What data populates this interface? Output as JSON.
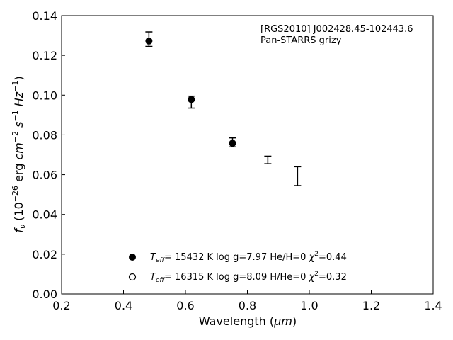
{
  "chart_data": {
    "type": "scatter",
    "annotation": [
      "[RGS2010] J002428.45-102443.6",
      "Pan-STARRS grizy"
    ],
    "xlabel": {
      "prefix": "Wavelength (",
      "unit": "μm",
      "suffix": ")"
    },
    "ylabel": {
      "f": "f",
      "nu": "ν",
      "open": " (10",
      "exp1": "−26",
      "mid": " erg ",
      "cm": "cm",
      "exp2": "−2",
      "s": " s",
      "exp3": "−1",
      "hz": " Hz",
      "exp4": "−1",
      "close": ")"
    },
    "xlim": [
      0.2,
      1.4
    ],
    "ylim": [
      0.0,
      0.14
    ],
    "xticks": [
      "0.2",
      "0.4",
      "0.6",
      "0.8",
      "1.0",
      "1.2",
      "1.4"
    ],
    "yticks": [
      "0.00",
      "0.02",
      "0.04",
      "0.06",
      "0.08",
      "0.10",
      "0.12",
      "0.14"
    ],
    "observed": {
      "x": [
        0.482,
        0.619,
        0.752,
        0.866,
        0.962
      ],
      "y": [
        0.1278,
        0.0966,
        0.0762,
        0.0674,
        0.0592
      ],
      "yerr_low": [
        0.1245,
        0.0935,
        0.074,
        0.0655,
        0.0545
      ],
      "yerr_high": [
        0.1318,
        0.0995,
        0.0785,
        0.0693,
        0.064
      ]
    },
    "model_he": {
      "marker": "filled-circle",
      "x": [
        0.482,
        0.619,
        0.752
      ],
      "y": [
        0.1272,
        0.0978,
        0.0758
      ]
    },
    "legend": [
      {
        "marker": "filled-circle",
        "teff_label": "T",
        "teff_sub": "eff",
        "text": "= 15432 K  log g=7.97  He/H=0  ",
        "chi": "χ",
        "chi_exp": "2",
        "chi_val": "=0.44"
      },
      {
        "marker": "open-circle",
        "teff_label": "T",
        "teff_sub": "eff",
        "text": "= 16315 K  log g=8.09  H/He=0  ",
        "chi": "χ",
        "chi_exp": "2",
        "chi_val": "=0.32"
      }
    ],
    "legend_position": "lower-center",
    "grid": false
  }
}
